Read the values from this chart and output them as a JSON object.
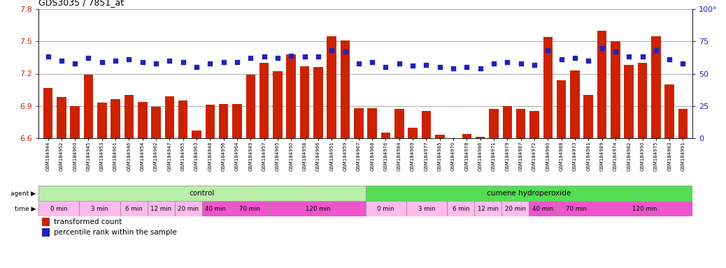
{
  "title": "GDS3035 / 7851_at",
  "ylim_left": [
    6.6,
    7.8
  ],
  "ylim_right": [
    0,
    100
  ],
  "yticks_left": [
    6.6,
    6.9,
    7.2,
    7.5,
    7.8
  ],
  "yticks_right": [
    0,
    25,
    50,
    75,
    100
  ],
  "bar_color": "#cc2200",
  "dot_color": "#2222bb",
  "samples": [
    "GSM184944",
    "GSM184952",
    "GSM184960",
    "GSM184945",
    "GSM184953",
    "GSM184961",
    "GSM184946",
    "GSM184954",
    "GSM184962",
    "GSM184947",
    "GSM184955",
    "GSM184963",
    "GSM184948",
    "GSM184956",
    "GSM184964",
    "GSM184949",
    "GSM184957",
    "GSM184965",
    "GSM184950",
    "GSM184958",
    "GSM184966",
    "GSM184951",
    "GSM184959",
    "GSM184967",
    "GSM184968",
    "GSM184976",
    "GSM184984",
    "GSM184969",
    "GSM184977",
    "GSM184985",
    "GSM184970",
    "GSM184978",
    "GSM184986",
    "GSM184971",
    "GSM184979",
    "GSM184987",
    "GSM184972",
    "GSM184980",
    "GSM184988",
    "GSM184973",
    "GSM184981",
    "GSM184989",
    "GSM184974",
    "GSM184982",
    "GSM184990",
    "GSM184975",
    "GSM184983",
    "GSM184991"
  ],
  "bar_values": [
    7.07,
    6.98,
    6.9,
    7.19,
    6.93,
    6.96,
    7.0,
    6.94,
    6.89,
    6.99,
    6.95,
    6.67,
    6.91,
    6.92,
    6.92,
    7.19,
    7.3,
    7.22,
    7.38,
    7.27,
    7.26,
    7.55,
    7.51,
    6.88,
    6.88,
    6.65,
    6.87,
    6.7,
    6.85,
    6.63,
    6.6,
    6.64,
    6.61,
    6.87,
    6.9,
    6.87,
    6.85,
    7.54,
    7.14,
    7.23,
    7.0,
    7.6,
    7.5,
    7.28,
    7.3,
    7.55,
    7.1,
    6.87
  ],
  "dot_values": [
    63,
    60,
    58,
    62,
    59,
    60,
    61,
    59,
    58,
    60,
    59,
    55,
    58,
    59,
    59,
    62,
    63,
    62,
    64,
    63,
    63,
    68,
    67,
    58,
    59,
    55,
    58,
    56,
    57,
    55,
    54,
    55,
    54,
    58,
    59,
    58,
    57,
    68,
    61,
    62,
    60,
    70,
    67,
    63,
    63,
    68,
    61,
    58
  ],
  "agent_groups": [
    {
      "label": "control",
      "start": 0,
      "end": 24,
      "color": "#bbeeaa"
    },
    {
      "label": "cumene hydroperoxide",
      "start": 24,
      "end": 48,
      "color": "#55dd55"
    }
  ],
  "time_groups": [
    {
      "label": "0 min",
      "start": 0,
      "end": 3,
      "color": "#ffbbee"
    },
    {
      "label": "3 min",
      "start": 3,
      "end": 6,
      "color": "#ffbbee"
    },
    {
      "label": "6 min",
      "start": 6,
      "end": 8,
      "color": "#ffbbee"
    },
    {
      "label": "12 min",
      "start": 8,
      "end": 10,
      "color": "#ffbbee"
    },
    {
      "label": "20 min",
      "start": 10,
      "end": 12,
      "color": "#ffbbee"
    },
    {
      "label": "40 min",
      "start": 12,
      "end": 14,
      "color": "#ee55cc"
    },
    {
      "label": "70 min",
      "start": 14,
      "end": 17,
      "color": "#ee55cc"
    },
    {
      "label": "120 min",
      "start": 17,
      "end": 24,
      "color": "#ee55cc"
    },
    {
      "label": "0 min",
      "start": 24,
      "end": 27,
      "color": "#ffbbee"
    },
    {
      "label": "3 min",
      "start": 27,
      "end": 30,
      "color": "#ffbbee"
    },
    {
      "label": "6 min",
      "start": 30,
      "end": 32,
      "color": "#ffbbee"
    },
    {
      "label": "12 min",
      "start": 32,
      "end": 34,
      "color": "#ffbbee"
    },
    {
      "label": "20 min",
      "start": 34,
      "end": 36,
      "color": "#ffbbee"
    },
    {
      "label": "40 min",
      "start": 36,
      "end": 38,
      "color": "#ee55cc"
    },
    {
      "label": "70 min",
      "start": 38,
      "end": 41,
      "color": "#ee55cc"
    },
    {
      "label": "120 min",
      "start": 41,
      "end": 48,
      "color": "#ee55cc"
    }
  ],
  "legend_bar_label": "transformed count",
  "legend_dot_label": "percentile rank within the sample",
  "bg_color": "#ffffff",
  "plot_bg_color": "#ffffff",
  "grid_color": "#555555"
}
